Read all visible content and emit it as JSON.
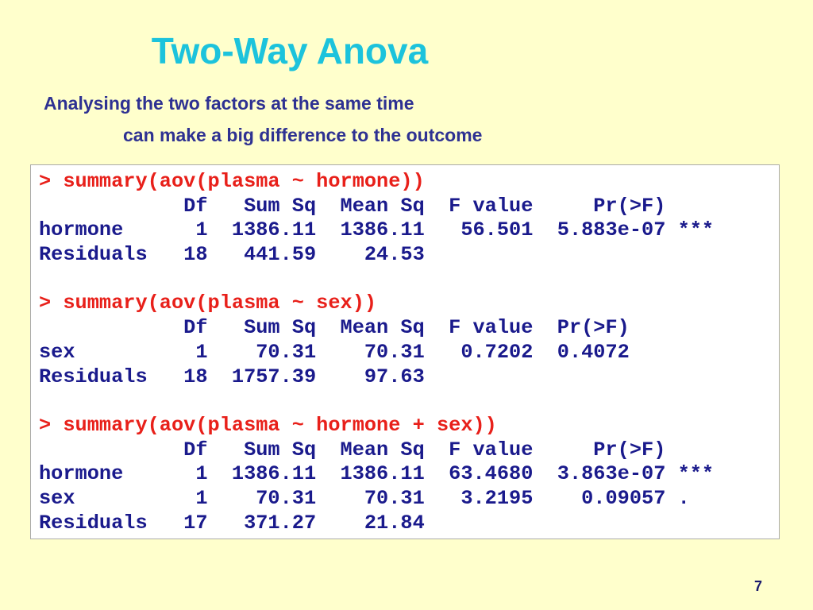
{
  "title": "Two-Way Anova",
  "subtitle": [
    "Analysing the two factors at the same time",
    "can make a big difference to the outcome"
  ],
  "code": [
    {
      "command": "> summary(aov(plasma ~ hormone))",
      "output": [
        "            Df   Sum Sq  Mean Sq  F value     Pr(>F)",
        "hormone      1  1386.11  1386.11   56.501  5.883e-07 ***",
        "Residuals   18   441.59    24.53"
      ]
    },
    {
      "command": "> summary(aov(plasma ~ sex))",
      "output": [
        "            Df   Sum Sq  Mean Sq  F value  Pr(>F)",
        "sex          1    70.31    70.31   0.7202  0.4072",
        "Residuals   18  1757.39    97.63"
      ]
    },
    {
      "command": "> summary(aov(plasma ~ hormone + sex))",
      "output": [
        "            Df   Sum Sq  Mean Sq  F value     Pr(>F)",
        "hormone      1  1386.11  1386.11  63.4680  3.863e-07 ***",
        "sex          1    70.31    70.31   3.2195    0.09057 .",
        "Residuals   17   371.27    21.84"
      ]
    }
  ],
  "page_number": "7"
}
